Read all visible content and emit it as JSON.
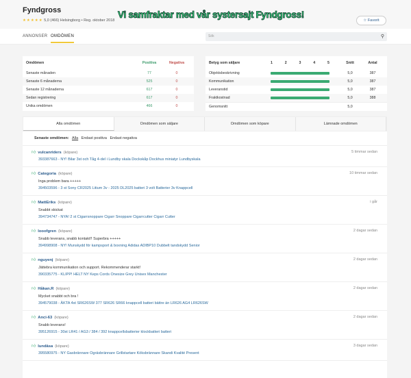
{
  "header": {
    "title": "Fyndgross",
    "stars": "★★★★★",
    "rating": "5,0",
    "count": "(466)",
    "location": "Helsingborg • Reg. oktober 2018",
    "banner": "Vi samfraktar med vår systersajt Fyndgross!",
    "favorite": "☆ Favorit"
  },
  "nav": {
    "tabs": [
      "ANNONSER",
      "OMDÖMEN"
    ],
    "search_placeholder": "Sök"
  },
  "stats": {
    "headers": [
      "Omdömen",
      "Positiva",
      "Negativa"
    ],
    "rows": [
      [
        "Senaste månaden",
        "77",
        "0"
      ],
      [
        "Senaste 6 månaderna",
        "525",
        "0"
      ],
      [
        "Senaste 12 månaderna",
        "617",
        "0"
      ],
      [
        "Sedan registrering",
        "617",
        "0"
      ],
      [
        "Unika omdömen",
        "466",
        "0"
      ]
    ]
  },
  "ratings": {
    "headers": [
      "Betyg som säljare",
      "1",
      "2",
      "3",
      "4",
      "5",
      "Snitt",
      "Antal"
    ],
    "rows": [
      {
        "label": "Objektsbeskrivning",
        "value": 5.0,
        "snitt": "5,0",
        "antal": "387"
      },
      {
        "label": "Kommunikation",
        "value": 5.0,
        "snitt": "5,0",
        "antal": "387"
      },
      {
        "label": "Leveranstid",
        "value": 5.0,
        "snitt": "5,0",
        "antal": "387"
      },
      {
        "label": "Fraktkostnad",
        "value": 5.0,
        "snitt": "5,0",
        "antal": "388"
      }
    ],
    "average_label": "Genomsnitt",
    "average": "5,0",
    "accent": "#3aaa72"
  },
  "tabs": [
    "Alla omdömen",
    "Omdömen som säljare",
    "Omdömen som köpare",
    "Lämnade omdömen"
  ],
  "filter": {
    "label": "Senaste omdömen:",
    "options": [
      "Alla",
      "Endast positiva",
      "Endast negativa"
    ]
  },
  "reviews": [
    {
      "user": "vulcanriders",
      "role": "(köpare)",
      "time": "5 timmar sedan",
      "comment": "",
      "item": "393387663 - NY! Bilar 3st och Tåg 4-del i Lundby skala Dockskåp Dockhus miniatyr Lundbyskala"
    },
    {
      "user": "Categoria",
      "role": "(köpare)",
      "time": "10 timmar sedan",
      "comment": "Inga problem bara +++++",
      "item": "394503596 - 3 st Sony CR2025 Litium 3v - 2025 DL2025 batteri 3 volt Batterier 3v Knappcell"
    },
    {
      "user": "MattEriks",
      "role": "(köpare)",
      "time": "i går",
      "comment": "Snabbt skickat",
      "item": "394734747 - NYA! 2 st Cigarrsnoppare Cigarr Snoppare Cigarrcutter Cigarr Cutter"
    },
    {
      "user": "looofgren",
      "role": "(köpare)",
      "time": "2 dagar sedan",
      "comment": "Snabb leverans, snabb kontakt!! Superbra +++++",
      "item": "394998908 - NY! Munskydd för kampsport & boxning Adidas ADIBP10 Dubbelt tandskydd Senior"
    },
    {
      "user": "nguyenj",
      "role": "(köpare)",
      "time": "2 dagar sedan",
      "comment": "Jättebra kommunikation och support. Rekommenderar starkt!",
      "item": "390335775 - KLIPP! HELT NY Keps Cords Onesize Grey Unisex Manchester"
    },
    {
      "user": "Håkan.R",
      "role": "(köpare)",
      "time": "2 dagar sedan",
      "comment": "Mycket snabbt och bra !",
      "item": "394579038 - ÄKTA 4st SR626SW 377 SR626 SR66 knappcell batteri bättre än LR626 AG4 LR626SW"
    },
    {
      "user": "Anci-63",
      "role": "(köpare)",
      "time": "2 dagar sedan",
      "comment": "Snabb leverans!",
      "item": "395126915 - 30st LR41 / AG3 / 384 / 392 knappcellsbatterier klockbatteri batteri"
    },
    {
      "user": "lundäsa",
      "role": "(köpare)",
      "time": "3 dagar sedan",
      "comment": "",
      "item": "395580975 - NY Gasbrännare Ogräsbrännare Grillstartare Köksbrännare Skandi Kvalité Present"
    }
  ]
}
